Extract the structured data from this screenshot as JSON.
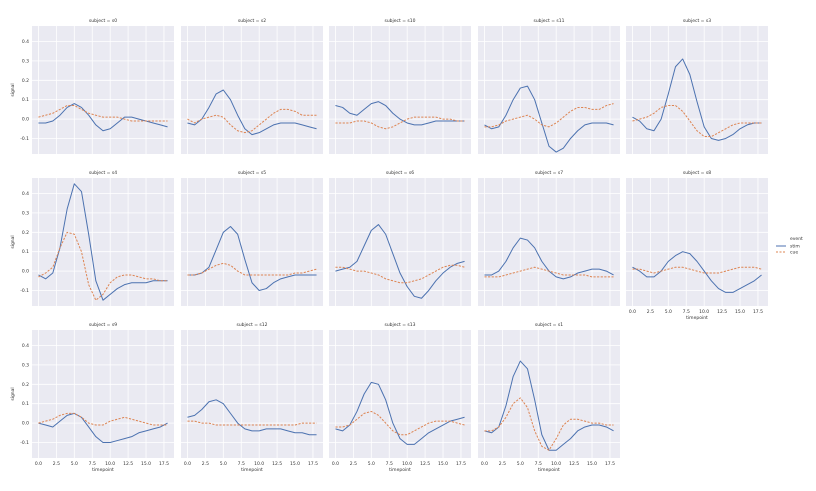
{
  "chart_data": {
    "type": "line",
    "grid": true,
    "xlabel": "timepoint",
    "ylabel": "signal",
    "xlim": [
      -0.9,
      18.9
    ],
    "ylim": [
      -0.18,
      0.48
    ],
    "xticks": [
      "0.0",
      "2.5",
      "5.0",
      "7.5",
      "10.0",
      "12.5",
      "15.0",
      "17.5"
    ],
    "yticks": [
      "-0.1",
      "0.0",
      "0.1",
      "0.2",
      "0.3",
      "0.4"
    ],
    "legend": {
      "title": "event",
      "placement": "right",
      "entries": [
        "stim",
        "cue"
      ]
    },
    "series_colors": {
      "stim": "#4c72b0",
      "cue": "#dd8452"
    },
    "x": [
      0,
      1,
      2,
      3,
      4,
      5,
      6,
      7,
      8,
      9,
      10,
      11,
      12,
      13,
      14,
      15,
      16,
      17,
      18
    ],
    "panels": [
      {
        "title": "subject = s0",
        "series": [
          {
            "name": "stim",
            "values": [
              -0.02,
              -0.02,
              -0.01,
              0.02,
              0.06,
              0.08,
              0.06,
              0.02,
              -0.03,
              -0.06,
              -0.05,
              -0.02,
              0.01,
              0.01,
              0.0,
              -0.01,
              -0.02,
              -0.03,
              -0.04
            ]
          },
          {
            "name": "cue",
            "values": [
              0.01,
              0.02,
              0.03,
              0.05,
              0.07,
              0.07,
              0.05,
              0.03,
              0.02,
              0.01,
              0.01,
              0.01,
              0.0,
              -0.01,
              -0.01,
              -0.01,
              -0.01,
              -0.01,
              -0.01
            ]
          }
        ]
      },
      {
        "title": "subject = s2",
        "series": [
          {
            "name": "stim",
            "values": [
              -0.02,
              -0.03,
              0.0,
              0.06,
              0.13,
              0.15,
              0.1,
              0.02,
              -0.05,
              -0.08,
              -0.07,
              -0.05,
              -0.03,
              -0.02,
              -0.02,
              -0.02,
              -0.03,
              -0.04,
              -0.05
            ]
          },
          {
            "name": "cue",
            "values": [
              0.0,
              -0.02,
              0.0,
              0.01,
              0.02,
              0.01,
              -0.03,
              -0.06,
              -0.07,
              -0.06,
              -0.03,
              0.0,
              0.03,
              0.05,
              0.05,
              0.04,
              0.02,
              0.02,
              0.02
            ]
          }
        ]
      },
      {
        "title": "subject = s10",
        "series": [
          {
            "name": "stim",
            "values": [
              0.07,
              0.06,
              0.03,
              0.02,
              0.05,
              0.08,
              0.09,
              0.07,
              0.03,
              0.0,
              -0.02,
              -0.03,
              -0.03,
              -0.02,
              -0.01,
              -0.01,
              -0.01,
              -0.01,
              -0.01
            ]
          },
          {
            "name": "cue",
            "values": [
              -0.02,
              -0.02,
              -0.02,
              -0.01,
              -0.01,
              -0.02,
              -0.04,
              -0.05,
              -0.04,
              -0.02,
              0.0,
              0.01,
              0.01,
              0.01,
              0.01,
              0.0,
              0.0,
              -0.01,
              -0.01
            ]
          }
        ]
      },
      {
        "title": "subject = s11",
        "series": [
          {
            "name": "stim",
            "values": [
              -0.03,
              -0.05,
              -0.04,
              0.02,
              0.1,
              0.16,
              0.17,
              0.1,
              -0.02,
              -0.14,
              -0.17,
              -0.15,
              -0.1,
              -0.06,
              -0.03,
              -0.02,
              -0.02,
              -0.02,
              -0.03
            ]
          },
          {
            "name": "cue",
            "values": [
              -0.04,
              -0.04,
              -0.03,
              -0.01,
              0.0,
              0.01,
              0.02,
              0.0,
              -0.03,
              -0.04,
              -0.02,
              0.01,
              0.04,
              0.06,
              0.06,
              0.05,
              0.05,
              0.07,
              0.08
            ]
          }
        ]
      },
      {
        "title": "subject = s3",
        "series": [
          {
            "name": "stim",
            "values": [
              0.01,
              -0.01,
              -0.05,
              -0.06,
              0.0,
              0.13,
              0.27,
              0.31,
              0.23,
              0.09,
              -0.04,
              -0.1,
              -0.11,
              -0.1,
              -0.08,
              -0.05,
              -0.03,
              -0.02,
              -0.02
            ]
          },
          {
            "name": "cue",
            "values": [
              -0.01,
              0.0,
              0.01,
              0.03,
              0.06,
              0.07,
              0.07,
              0.04,
              -0.01,
              -0.06,
              -0.09,
              -0.09,
              -0.07,
              -0.05,
              -0.03,
              -0.02,
              -0.02,
              -0.02,
              -0.02
            ]
          }
        ]
      },
      {
        "title": "subject = s4",
        "series": [
          {
            "name": "stim",
            "values": [
              -0.02,
              -0.04,
              -0.01,
              0.12,
              0.32,
              0.45,
              0.41,
              0.19,
              -0.05,
              -0.15,
              -0.12,
              -0.09,
              -0.07,
              -0.06,
              -0.06,
              -0.06,
              -0.05,
              -0.05,
              -0.05
            ]
          },
          {
            "name": "cue",
            "values": [
              -0.03,
              -0.01,
              0.02,
              0.12,
              0.2,
              0.19,
              0.1,
              -0.07,
              -0.15,
              -0.12,
              -0.06,
              -0.03,
              -0.02,
              -0.02,
              -0.03,
              -0.04,
              -0.04,
              -0.05,
              -0.05
            ]
          }
        ]
      },
      {
        "title": "subject = s5",
        "series": [
          {
            "name": "stim",
            "values": [
              -0.02,
              -0.02,
              -0.01,
              0.02,
              0.11,
              0.2,
              0.23,
              0.19,
              0.06,
              -0.06,
              -0.1,
              -0.09,
              -0.06,
              -0.04,
              -0.03,
              -0.02,
              -0.02,
              -0.02,
              -0.02
            ]
          },
          {
            "name": "cue",
            "values": [
              -0.02,
              -0.02,
              -0.01,
              0.01,
              0.03,
              0.04,
              0.03,
              0.0,
              -0.02,
              -0.02,
              -0.02,
              -0.02,
              -0.02,
              -0.02,
              -0.02,
              -0.01,
              -0.01,
              0.0,
              0.01
            ]
          }
        ]
      },
      {
        "title": "subject = s6",
        "series": [
          {
            "name": "stim",
            "values": [
              0.0,
              0.01,
              0.02,
              0.05,
              0.13,
              0.21,
              0.24,
              0.19,
              0.09,
              -0.01,
              -0.08,
              -0.13,
              -0.14,
              -0.1,
              -0.05,
              -0.01,
              0.02,
              0.04,
              0.05
            ]
          },
          {
            "name": "cue",
            "values": [
              0.02,
              0.02,
              0.01,
              0.0,
              0.0,
              -0.01,
              -0.02,
              -0.04,
              -0.05,
              -0.06,
              -0.06,
              -0.05,
              -0.04,
              -0.02,
              0.0,
              0.02,
              0.03,
              0.03,
              0.02
            ]
          }
        ]
      },
      {
        "title": "subject = s7",
        "series": [
          {
            "name": "stim",
            "values": [
              -0.02,
              -0.02,
              0.0,
              0.05,
              0.12,
              0.17,
              0.16,
              0.12,
              0.05,
              0.0,
              -0.03,
              -0.04,
              -0.03,
              -0.01,
              0.0,
              0.01,
              0.01,
              0.0,
              -0.02
            ]
          },
          {
            "name": "cue",
            "values": [
              -0.03,
              -0.03,
              -0.03,
              -0.02,
              -0.01,
              0.0,
              0.01,
              0.02,
              0.01,
              0.0,
              -0.01,
              -0.02,
              -0.02,
              -0.02,
              -0.02,
              -0.03,
              -0.03,
              -0.03,
              -0.03
            ]
          }
        ]
      },
      {
        "title": "subject = s8",
        "series": [
          {
            "name": "stim",
            "values": [
              0.02,
              0.0,
              -0.03,
              -0.03,
              0.0,
              0.05,
              0.08,
              0.1,
              0.09,
              0.05,
              0.0,
              -0.05,
              -0.09,
              -0.11,
              -0.11,
              -0.09,
              -0.07,
              -0.05,
              -0.02
            ]
          },
          {
            "name": "cue",
            "values": [
              0.01,
              0.01,
              0.0,
              -0.01,
              0.0,
              0.01,
              0.02,
              0.02,
              0.01,
              0.0,
              -0.01,
              -0.01,
              -0.01,
              0.0,
              0.01,
              0.02,
              0.02,
              0.02,
              0.01
            ]
          }
        ]
      },
      {
        "title": "subject = s9",
        "series": [
          {
            "name": "stim",
            "values": [
              0.0,
              -0.01,
              -0.02,
              0.01,
              0.04,
              0.05,
              0.03,
              -0.02,
              -0.07,
              -0.1,
              -0.1,
              -0.09,
              -0.08,
              -0.07,
              -0.05,
              -0.04,
              -0.03,
              -0.02,
              0.0
            ]
          },
          {
            "name": "cue",
            "values": [
              0.0,
              0.01,
              0.02,
              0.04,
              0.05,
              0.05,
              0.03,
              0.0,
              -0.01,
              -0.01,
              0.01,
              0.02,
              0.03,
              0.02,
              0.01,
              0.0,
              -0.01,
              -0.01,
              -0.01
            ]
          }
        ]
      },
      {
        "title": "subject = s12",
        "series": [
          {
            "name": "stim",
            "values": [
              0.03,
              0.04,
              0.07,
              0.11,
              0.12,
              0.1,
              0.05,
              0.0,
              -0.03,
              -0.04,
              -0.04,
              -0.03,
              -0.03,
              -0.03,
              -0.04,
              -0.05,
              -0.05,
              -0.06,
              -0.06
            ]
          },
          {
            "name": "cue",
            "values": [
              0.01,
              0.01,
              0.0,
              0.0,
              -0.01,
              -0.01,
              -0.01,
              -0.01,
              -0.01,
              -0.01,
              -0.01,
              -0.01,
              -0.01,
              -0.01,
              -0.01,
              -0.01,
              0.0,
              0.0,
              0.0
            ]
          }
        ]
      },
      {
        "title": "subject = s13",
        "series": [
          {
            "name": "stim",
            "values": [
              -0.03,
              -0.04,
              -0.01,
              0.06,
              0.15,
              0.21,
              0.2,
              0.12,
              0.0,
              -0.08,
              -0.11,
              -0.11,
              -0.08,
              -0.05,
              -0.03,
              -0.01,
              0.01,
              0.02,
              0.03
            ]
          },
          {
            "name": "cue",
            "values": [
              -0.02,
              -0.02,
              -0.01,
              0.02,
              0.05,
              0.06,
              0.04,
              0.0,
              -0.04,
              -0.06,
              -0.06,
              -0.04,
              -0.02,
              0.0,
              0.01,
              0.01,
              0.01,
              0.0,
              -0.01
            ]
          }
        ]
      },
      {
        "title": "subject = s1",
        "series": [
          {
            "name": "stim",
            "values": [
              -0.04,
              -0.05,
              -0.02,
              0.09,
              0.24,
              0.32,
              0.28,
              0.12,
              -0.06,
              -0.14,
              -0.14,
              -0.11,
              -0.08,
              -0.04,
              -0.02,
              -0.01,
              -0.01,
              -0.02,
              -0.04
            ]
          },
          {
            "name": "cue",
            "values": [
              -0.04,
              -0.04,
              -0.02,
              0.03,
              0.1,
              0.13,
              0.08,
              -0.04,
              -0.12,
              -0.14,
              -0.08,
              -0.01,
              0.02,
              0.02,
              0.01,
              0.0,
              0.0,
              -0.01,
              -0.01
            ]
          }
        ]
      }
    ]
  }
}
